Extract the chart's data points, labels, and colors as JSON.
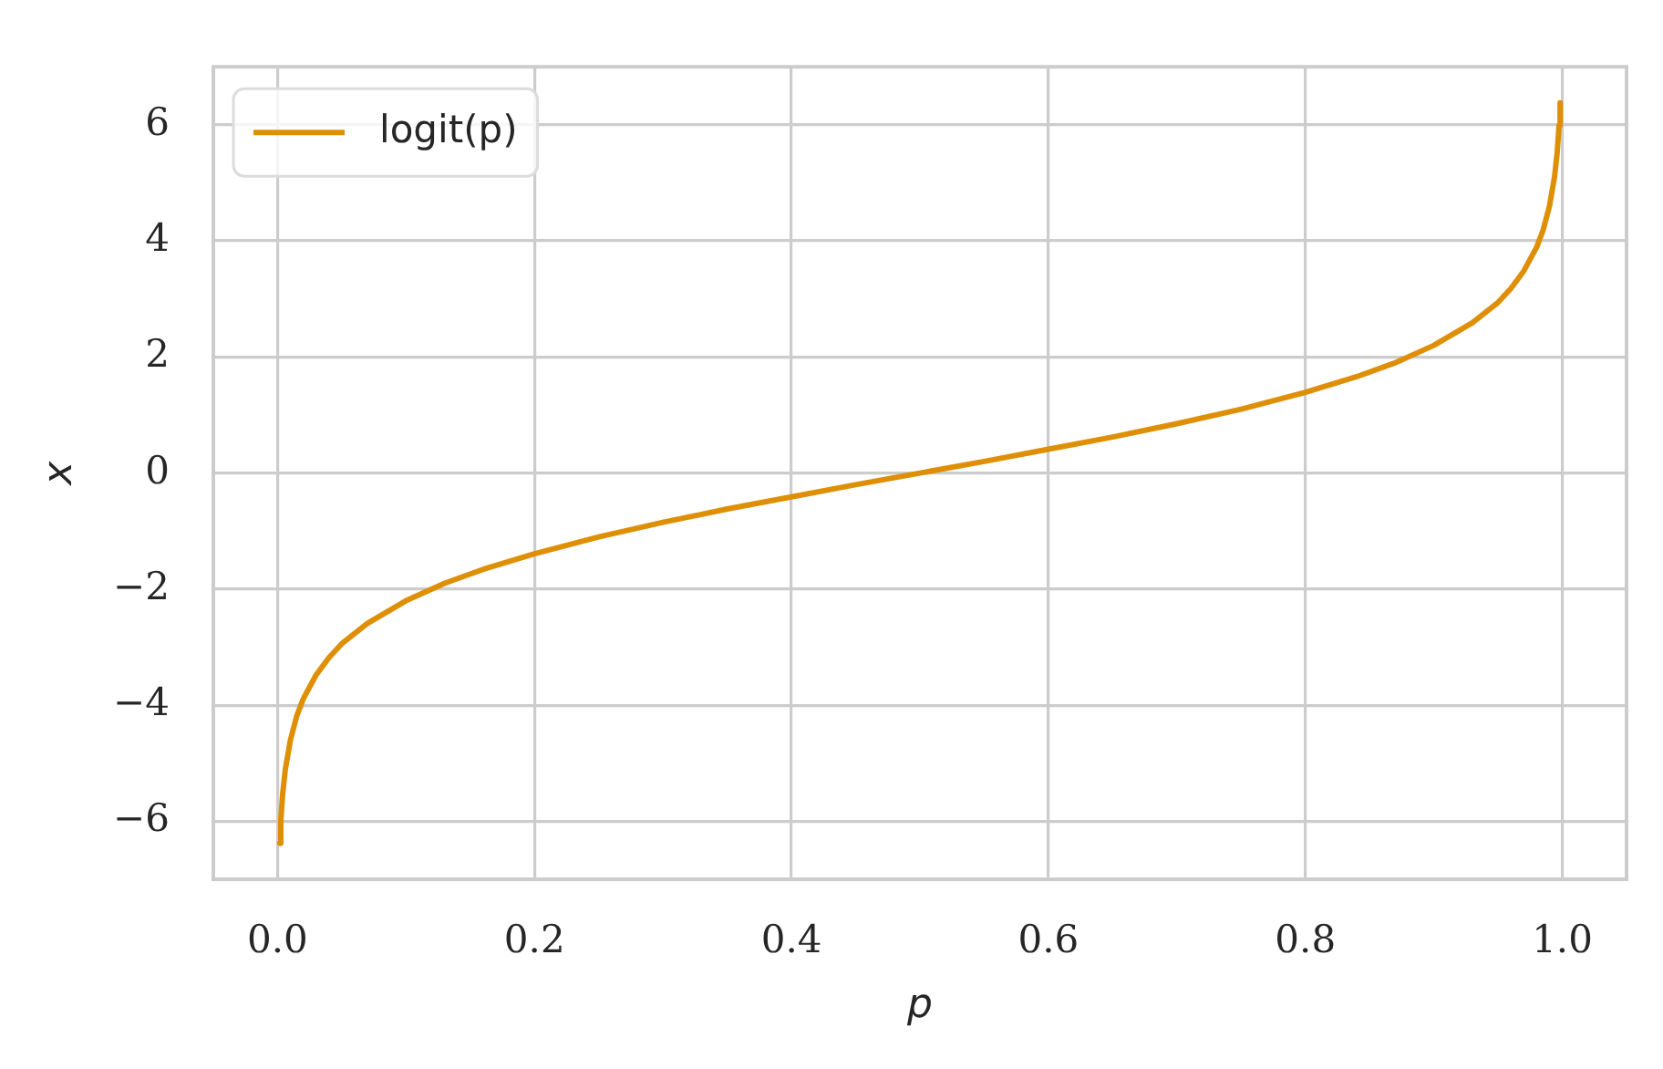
{
  "chart_data": {
    "type": "line",
    "xlabel": "p",
    "ylabel": "x",
    "x": [
      0.0017,
      0.0025,
      0.004,
      0.006,
      0.01,
      0.015,
      0.02,
      0.03,
      0.04,
      0.05,
      0.07,
      0.1,
      0.13,
      0.16,
      0.2,
      0.25,
      0.3,
      0.35,
      0.4,
      0.45,
      0.5,
      0.55,
      0.6,
      0.65,
      0.7,
      0.75,
      0.8,
      0.84,
      0.87,
      0.9,
      0.93,
      0.95,
      0.96,
      0.97,
      0.98,
      0.985,
      0.99,
      0.994,
      0.996,
      0.9975,
      0.9983
    ],
    "series": [
      {
        "name": "logit(p)",
        "color": "#de8f05",
        "values": [
          -6.38,
          -5.99,
          -5.52,
          -5.11,
          -4.6,
          -4.18,
          -3.89,
          -3.48,
          -3.18,
          -2.94,
          -2.59,
          -2.2,
          -1.9,
          -1.66,
          -1.39,
          -1.1,
          -0.85,
          -0.62,
          -0.41,
          -0.2,
          0,
          0.2,
          0.41,
          0.62,
          0.85,
          1.1,
          1.39,
          1.66,
          1.9,
          2.2,
          2.59,
          2.94,
          3.18,
          3.48,
          3.89,
          4.18,
          4.6,
          5.11,
          5.52,
          5.99,
          6.38
        ]
      }
    ],
    "xlim": [
      -0.05,
      1.05
    ],
    "ylim": [
      -7,
      7
    ],
    "xticks": [
      {
        "value": 0,
        "label": "0.0"
      },
      {
        "value": 0.2,
        "label": "0.2"
      },
      {
        "value": 0.4,
        "label": "0.4"
      },
      {
        "value": 0.6,
        "label": "0.6"
      },
      {
        "value": 0.8,
        "label": "0.8"
      },
      {
        "value": 1,
        "label": "1.0"
      }
    ],
    "yticks": [
      {
        "value": -6,
        "label": "−6"
      },
      {
        "value": -4,
        "label": "−4"
      },
      {
        "value": -2,
        "label": "−2"
      },
      0,
      2,
      4,
      6
    ],
    "grid": true,
    "legend": "top left",
    "marker": "none"
  }
}
